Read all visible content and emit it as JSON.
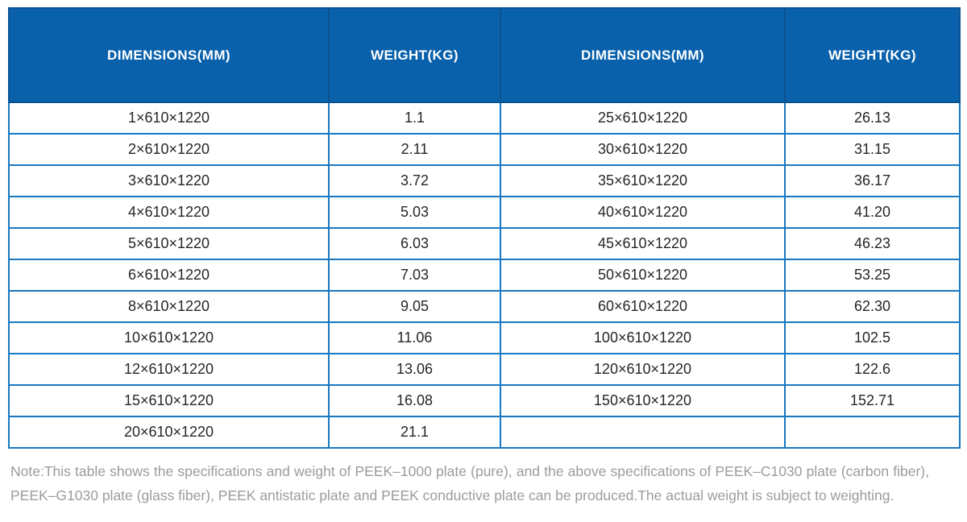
{
  "colors": {
    "header_background": "#0961ac",
    "header_text": "#ffffff",
    "grid_border": "#1878c2",
    "header_border": "#0a5392",
    "cell_text": "#262626",
    "note_text": "#9c9c9c"
  },
  "table": {
    "headers": [
      "DIMENSIONS(MM)",
      "WEIGHT(KG)",
      "DIMENSIONS(MM)",
      "WEIGHT(KG)"
    ],
    "rows": [
      [
        "1×610×1220",
        "1.1",
        "25×610×1220",
        "26.13"
      ],
      [
        "2×610×1220",
        "2.11",
        "30×610×1220",
        "31.15"
      ],
      [
        "3×610×1220",
        "3.72",
        "35×610×1220",
        "36.17"
      ],
      [
        "4×610×1220",
        "5.03",
        "40×610×1220",
        "41.20"
      ],
      [
        "5×610×1220",
        "6.03",
        "45×610×1220",
        "46.23"
      ],
      [
        "6×610×1220",
        "7.03",
        "50×610×1220",
        "53.25"
      ],
      [
        "8×610×1220",
        "9.05",
        "60×610×1220",
        "62.30"
      ],
      [
        "10×610×1220",
        "11.06",
        "100×610×1220",
        "102.5"
      ],
      [
        "12×610×1220",
        "13.06",
        "120×610×1220",
        "122.6"
      ],
      [
        "15×610×1220",
        "16.08",
        "150×610×1220",
        "152.71"
      ],
      [
        "20×610×1220",
        "21.1",
        "",
        ""
      ]
    ]
  },
  "note": {
    "line1": "Note:This table shows the specifications and weight of PEEK–1000 plate (pure), and the above specifications of PEEK–C1030 plate (carbon fiber),",
    "line2": "PEEK–G1030 plate (glass fiber), PEEK antistatic plate and PEEK conductive plate can be produced.The actual weight is subject to weighting."
  }
}
